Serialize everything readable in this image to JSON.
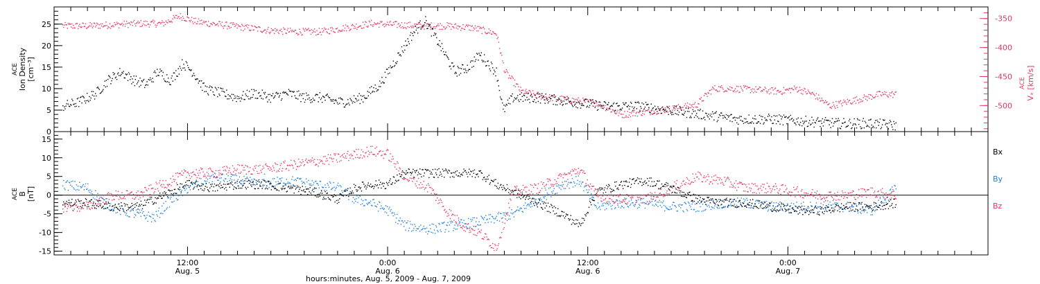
{
  "chart_data": [
    {
      "type": "scatter",
      "panel": "top",
      "ylabel_left_lines": [
        "ACE",
        "Ion Density",
        "[cm⁻³]"
      ],
      "ylabel_right_lines": [
        "ACE",
        "Vₓ [km/s]"
      ],
      "ylim_left": [
        0,
        29
      ],
      "yticks_left": [
        0,
        5,
        10,
        15,
        20,
        25
      ],
      "ylim_right": [
        -545,
        -330
      ],
      "yticks_right": [
        -350,
        -400,
        -450,
        -500
      ],
      "x_hours_range": [
        4.0,
        60.0
      ],
      "series": [
        {
          "name": "",
          "axis": "left",
          "color": "#000000",
          "points": [
            [
              4.5,
              6
            ],
            [
              5.5,
              7
            ],
            [
              6.5,
              9
            ],
            [
              7.2,
              12
            ],
            [
              8.0,
              14
            ],
            [
              8.8,
              12
            ],
            [
              9.5,
              11
            ],
            [
              10.2,
              14
            ],
            [
              11.0,
              12
            ],
            [
              11.7,
              16
            ],
            [
              12.3,
              14
            ],
            [
              13.0,
              10
            ],
            [
              14.0,
              9
            ],
            [
              15.0,
              8
            ],
            [
              16.0,
              9
            ],
            [
              17.0,
              8
            ],
            [
              18.0,
              9
            ],
            [
              19.0,
              8
            ],
            [
              20.0,
              8
            ],
            [
              21.0,
              7
            ],
            [
              21.5,
              7
            ],
            [
              22.5,
              8
            ],
            [
              23.5,
              11
            ],
            [
              24.5,
              17
            ],
            [
              25.5,
              23
            ],
            [
              26.2,
              26
            ],
            [
              27.0,
              21
            ],
            [
              28.0,
              14
            ],
            [
              28.8,
              15
            ],
            [
              29.5,
              18
            ],
            [
              30.5,
              14
            ],
            [
              30.9,
              5
            ],
            [
              31.5,
              8
            ],
            [
              33.0,
              8
            ],
            [
              35.0,
              7
            ],
            [
              37.0,
              6
            ],
            [
              39.0,
              6
            ],
            [
              41.0,
              5
            ],
            [
              43.0,
              4
            ],
            [
              45.0,
              3
            ],
            [
              47.0,
              3
            ],
            [
              49.0,
              2.5
            ],
            [
              51.0,
              2
            ],
            [
              53.0,
              2
            ],
            [
              54.5,
              1.5
            ]
          ]
        },
        {
          "name": "",
          "axis": "right",
          "color": "#e8345f",
          "points": [
            [
              4.5,
              -362
            ],
            [
              6.0,
              -362
            ],
            [
              7.5,
              -360
            ],
            [
              9.0,
              -358
            ],
            [
              10.5,
              -358
            ],
            [
              11.5,
              -345
            ],
            [
              12.5,
              -355
            ],
            [
              14.0,
              -360
            ],
            [
              15.5,
              -365
            ],
            [
              17.0,
              -370
            ],
            [
              18.5,
              -372
            ],
            [
              20.0,
              -372
            ],
            [
              21.5,
              -365
            ],
            [
              23.0,
              -358
            ],
            [
              24.5,
              -360
            ],
            [
              26.0,
              -362
            ],
            [
              27.5,
              -362
            ],
            [
              29.0,
              -365
            ],
            [
              30.5,
              -375
            ],
            [
              31.0,
              -440
            ],
            [
              32.0,
              -475
            ],
            [
              33.5,
              -485
            ],
            [
              35.0,
              -490
            ],
            [
              36.5,
              -495
            ],
            [
              38.0,
              -515
            ],
            [
              39.5,
              -510
            ],
            [
              41.0,
              -505
            ],
            [
              42.5,
              -498
            ],
            [
              43.5,
              -470
            ],
            [
              44.5,
              -470
            ],
            [
              46.0,
              -472
            ],
            [
              47.5,
              -475
            ],
            [
              48.5,
              -470
            ],
            [
              49.5,
              -480
            ],
            [
              50.5,
              -500
            ],
            [
              52.0,
              -490
            ],
            [
              53.5,
              -480
            ],
            [
              54.5,
              -480
            ]
          ]
        }
      ]
    },
    {
      "type": "scatter",
      "panel": "bottom",
      "ylabel_lines": [
        "ACE",
        "B",
        "[nT]"
      ],
      "ylim": [
        -16,
        17
      ],
      "yticks": [
        -15,
        -10,
        -5,
        0,
        5,
        10,
        15
      ],
      "x_hours_range": [
        4.0,
        60.0
      ],
      "xtick_labels": [
        {
          "hour": 12,
          "time": "12:00",
          "date": "Aug. 5"
        },
        {
          "hour": 24,
          "time": "0:00",
          "date": "Aug. 6"
        },
        {
          "hour": 36,
          "time": "12:00",
          "date": "Aug. 6"
        },
        {
          "hour": 48,
          "time": "0:00",
          "date": "Aug. 7"
        }
      ],
      "xlabel": "hours:minutes, Aug.  5, 2009 - Aug.  7, 2009",
      "series": [
        {
          "name": "Bx",
          "color": "#000000",
          "points": [
            [
              4.5,
              -2
            ],
            [
              6.0,
              -2
            ],
            [
              7.5,
              -3
            ],
            [
              9.0,
              -3
            ],
            [
              10.5,
              0
            ],
            [
              12.0,
              3
            ],
            [
              13.5,
              2
            ],
            [
              15.0,
              3
            ],
            [
              16.5,
              3
            ],
            [
              18.0,
              2
            ],
            [
              19.5,
              1
            ],
            [
              21.0,
              -1
            ],
            [
              22.0,
              2
            ],
            [
              23.0,
              3
            ],
            [
              24.0,
              3
            ],
            [
              25.0,
              6
            ],
            [
              26.5,
              6
            ],
            [
              28.0,
              6
            ],
            [
              29.5,
              6
            ],
            [
              30.5,
              3
            ],
            [
              31.5,
              1
            ],
            [
              33.0,
              -2
            ],
            [
              34.5,
              -5
            ],
            [
              35.5,
              -8
            ],
            [
              36.5,
              1
            ],
            [
              38.0,
              3
            ],
            [
              39.5,
              4
            ],
            [
              41.0,
              2
            ],
            [
              42.5,
              -1
            ],
            [
              44.0,
              -2
            ],
            [
              45.5,
              -2
            ],
            [
              47.0,
              -3
            ],
            [
              48.5,
              -4
            ],
            [
              50.0,
              -4
            ],
            [
              51.5,
              -3
            ],
            [
              53.0,
              -3
            ],
            [
              54.5,
              -2
            ]
          ]
        },
        {
          "name": "By",
          "color": "#1e7fe0",
          "points": [
            [
              4.5,
              3
            ],
            [
              6.0,
              2
            ],
            [
              7.0,
              -2
            ],
            [
              8.0,
              -4
            ],
            [
              9.0,
              -5
            ],
            [
              10.0,
              -6
            ],
            [
              10.8,
              -2
            ],
            [
              12.0,
              2
            ],
            [
              13.5,
              5
            ],
            [
              15.0,
              4
            ],
            [
              16.5,
              3
            ],
            [
              18.0,
              4
            ],
            [
              19.5,
              3
            ],
            [
              21.0,
              2
            ],
            [
              22.0,
              -1
            ],
            [
              23.0,
              -2
            ],
            [
              24.0,
              -4
            ],
            [
              25.0,
              -8
            ],
            [
              26.5,
              -9
            ],
            [
              28.0,
              -8
            ],
            [
              29.5,
              -7
            ],
            [
              30.5,
              -6
            ],
            [
              31.5,
              -5
            ],
            [
              33.0,
              -1
            ],
            [
              34.5,
              3
            ],
            [
              35.5,
              4
            ],
            [
              36.5,
              -3
            ],
            [
              38.0,
              -2
            ],
            [
              39.5,
              -2
            ],
            [
              41.0,
              -3
            ],
            [
              42.5,
              -3
            ],
            [
              44.0,
              -2
            ],
            [
              45.5,
              -2
            ],
            [
              47.0,
              -3
            ],
            [
              48.5,
              -3
            ],
            [
              50.0,
              -3
            ],
            [
              51.5,
              -3
            ],
            [
              53.0,
              -4
            ],
            [
              54.5,
              2
            ]
          ]
        },
        {
          "name": "Bz",
          "color": "#e8345f",
          "points": [
            [
              4.5,
              -3
            ],
            [
              6.0,
              -3
            ],
            [
              7.5,
              0
            ],
            [
              9.0,
              0
            ],
            [
              10.5,
              3
            ],
            [
              12.0,
              6
            ],
            [
              13.5,
              6
            ],
            [
              15.0,
              7
            ],
            [
              16.5,
              7
            ],
            [
              18.0,
              8
            ],
            [
              19.5,
              9
            ],
            [
              21.0,
              10
            ],
            [
              22.0,
              11
            ],
            [
              23.0,
              12
            ],
            [
              24.0,
              11
            ],
            [
              25.0,
              5
            ],
            [
              26.5,
              2
            ],
            [
              27.5,
              -4
            ],
            [
              28.5,
              -8
            ],
            [
              29.5,
              -10
            ],
            [
              30.5,
              -14
            ],
            [
              31.5,
              1
            ],
            [
              33.0,
              2
            ],
            [
              34.5,
              5
            ],
            [
              35.5,
              7
            ],
            [
              36.5,
              0
            ],
            [
              38.0,
              -1
            ],
            [
              39.5,
              -1
            ],
            [
              41.0,
              2
            ],
            [
              42.5,
              5
            ],
            [
              44.0,
              4
            ],
            [
              45.5,
              2
            ],
            [
              47.0,
              2
            ],
            [
              48.5,
              1
            ],
            [
              50.0,
              0
            ],
            [
              51.5,
              0
            ],
            [
              53.0,
              1
            ],
            [
              54.5,
              0
            ]
          ]
        }
      ]
    }
  ]
}
